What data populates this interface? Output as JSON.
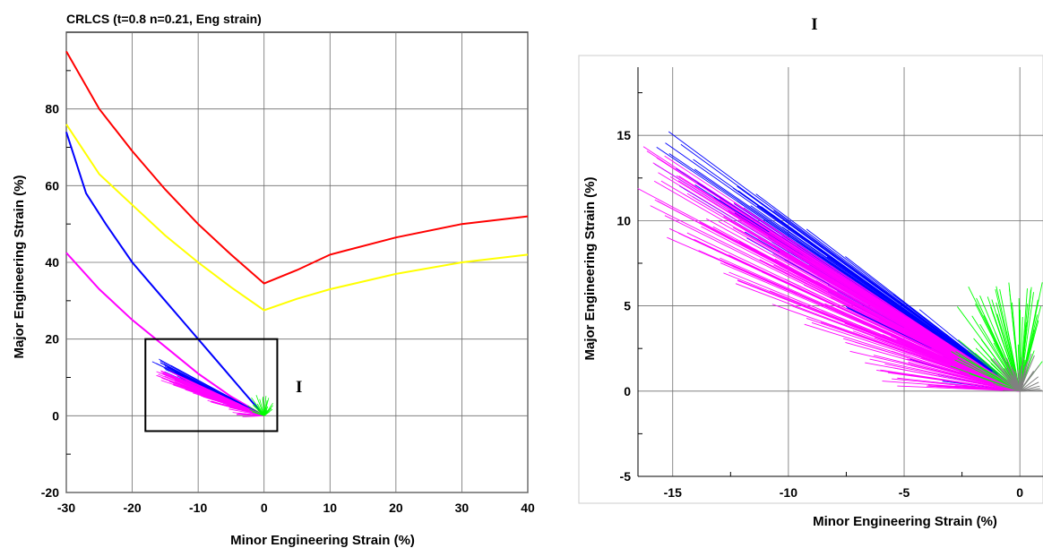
{
  "chart_data": [
    {
      "type": "line",
      "title": "CRLCS (t=0.8 n=0.21, Eng strain)",
      "xlabel": "Minor Engineering Strain (%)",
      "ylabel": "Major Engineering Strain (%)",
      "xlim": [
        -30,
        40
      ],
      "ylim": [
        -20,
        100
      ],
      "xticks": [
        "-30",
        "-20",
        "-10",
        "0",
        "10",
        "20",
        "30",
        "40"
      ],
      "yticks": [
        "-20",
        "0",
        "20",
        "40",
        "60",
        "80"
      ],
      "grid": true,
      "series": [
        {
          "color": "#ff0000",
          "x": [
            -30,
            -25,
            -20,
            -15,
            -10,
            -5,
            0,
            5,
            10,
            20,
            30,
            40
          ],
          "y": [
            95,
            80,
            69,
            59,
            50,
            42,
            34.5,
            38,
            42,
            46.5,
            50,
            52
          ]
        },
        {
          "color": "#ffff00",
          "x": [
            -30,
            -25,
            -20,
            -15,
            -10,
            -5,
            0,
            5,
            10,
            20,
            30,
            40
          ],
          "y": [
            76,
            63,
            55,
            47,
            40,
            33.5,
            27.5,
            30.5,
            33,
            37,
            40,
            42
          ]
        },
        {
          "color": "#0000ff",
          "x": [
            -30,
            -27,
            -24,
            -20,
            -16,
            -12,
            -8,
            -4,
            0
          ],
          "y": [
            74,
            58,
            50,
            40,
            32,
            24,
            16,
            8,
            0
          ]
        },
        {
          "color": "#ff00ff",
          "x": [
            -30,
            -25,
            -20,
            -15,
            -10,
            -5,
            0
          ],
          "y": [
            42.5,
            33,
            25,
            18,
            11,
            5,
            0
          ]
        }
      ],
      "annotations": [
        "I"
      ],
      "zoom_box": {
        "x": [
          -18,
          2
        ],
        "y": [
          -4,
          20
        ]
      }
    },
    {
      "type": "scatter",
      "title": "I",
      "xlabel": "Minor Engineering Strain (%)",
      "ylabel": "Major Engineering Strain (%)",
      "xlim": [
        -16.5,
        1
      ],
      "ylim": [
        -5,
        19
      ],
      "xticks": [
        "-15",
        "-10",
        "-5",
        "0"
      ],
      "yticks": [
        "-5",
        "0",
        "5",
        "10",
        "15"
      ],
      "grid": true,
      "series": [
        {
          "color": "#0000ff",
          "description": "strain paths to about (-16, 15.8)"
        },
        {
          "color": "#ff00ff",
          "description": "strain paths to about (-16.5, 15)"
        },
        {
          "color": "#00ff00",
          "description": "strain paths near minor 0, up to 6"
        },
        {
          "color": "#808080",
          "description": "strain paths near origin"
        }
      ]
    }
  ]
}
